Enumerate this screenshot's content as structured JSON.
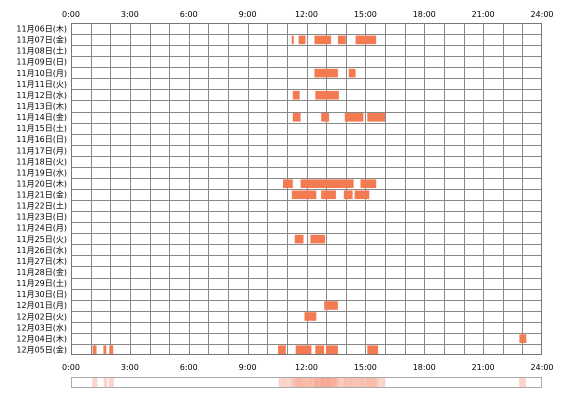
{
  "chart_data": {
    "type": "heatmap",
    "x_range_hours": [
      0,
      24
    ],
    "x_ticks": [
      "0:00",
      "3:00",
      "6:00",
      "9:00",
      "12:00",
      "15:00",
      "18:00",
      "21:00",
      "24:00"
    ],
    "rows": [
      {
        "date": "11月06日(木)",
        "segments": []
      },
      {
        "date": "11月07日(金)",
        "segments": [
          [
            11.25,
            11.35
          ],
          [
            11.6,
            11.95
          ],
          [
            12.4,
            13.25
          ],
          [
            13.6,
            14.0
          ],
          [
            14.5,
            15.55
          ]
        ]
      },
      {
        "date": "11月08日(土)",
        "segments": []
      },
      {
        "date": "11月09日(日)",
        "segments": []
      },
      {
        "date": "11月10日(月)",
        "segments": [
          [
            12.4,
            13.6
          ],
          [
            14.15,
            14.5
          ]
        ]
      },
      {
        "date": "11月11日(火)",
        "segments": []
      },
      {
        "date": "11月12日(水)",
        "segments": [
          [
            11.3,
            11.65
          ],
          [
            12.45,
            13.65
          ]
        ]
      },
      {
        "date": "11月13日(木)",
        "segments": []
      },
      {
        "date": "11月14日(金)",
        "segments": [
          [
            11.3,
            11.7
          ],
          [
            12.75,
            13.15
          ],
          [
            13.95,
            14.9
          ],
          [
            15.1,
            16.0
          ]
        ]
      },
      {
        "date": "11月15日(土)",
        "segments": []
      },
      {
        "date": "11月16日(日)",
        "segments": []
      },
      {
        "date": "11月17日(月)",
        "segments": []
      },
      {
        "date": "11月18日(火)",
        "segments": []
      },
      {
        "date": "11月19日(水)",
        "segments": []
      },
      {
        "date": "11月20日(木)",
        "segments": [
          [
            10.8,
            11.3
          ],
          [
            11.7,
            14.4
          ],
          [
            14.75,
            15.55
          ]
        ]
      },
      {
        "date": "11月21日(金)",
        "segments": [
          [
            11.25,
            12.5
          ],
          [
            12.75,
            13.5
          ],
          [
            13.9,
            14.35
          ],
          [
            14.45,
            15.2
          ]
        ]
      },
      {
        "date": "11月22日(土)",
        "segments": []
      },
      {
        "date": "11月23日(日)",
        "segments": []
      },
      {
        "date": "11月24日(月)",
        "segments": []
      },
      {
        "date": "11月25日(火)",
        "segments": [
          [
            11.4,
            11.85
          ],
          [
            12.2,
            12.95
          ]
        ]
      },
      {
        "date": "11月26日(水)",
        "segments": []
      },
      {
        "date": "11月27日(木)",
        "segments": []
      },
      {
        "date": "11月28日(金)",
        "segments": []
      },
      {
        "date": "11月29日(土)",
        "segments": []
      },
      {
        "date": "11月30日(日)",
        "segments": []
      },
      {
        "date": "12月01日(月)",
        "segments": [
          [
            12.9,
            13.6
          ]
        ]
      },
      {
        "date": "12月02日(火)",
        "segments": [
          [
            11.9,
            12.5
          ]
        ]
      },
      {
        "date": "12月03日(水)",
        "segments": []
      },
      {
        "date": "12月04日(木)",
        "segments": [
          [
            22.85,
            23.2
          ]
        ]
      },
      {
        "date": "12月05日(金)",
        "segments": [
          [
            1.1,
            1.3
          ],
          [
            1.65,
            1.8
          ],
          [
            1.95,
            2.15
          ],
          [
            10.55,
            10.95
          ],
          [
            11.45,
            12.25
          ],
          [
            12.45,
            12.9
          ],
          [
            13.0,
            13.6
          ],
          [
            15.1,
            15.65
          ]
        ]
      }
    ],
    "density_bar": true,
    "colors": {
      "bar": "#f47a52",
      "grid": "#888888",
      "frame": "#777777",
      "density_low": "#fdeeea",
      "density_high": "#f7a893"
    }
  }
}
